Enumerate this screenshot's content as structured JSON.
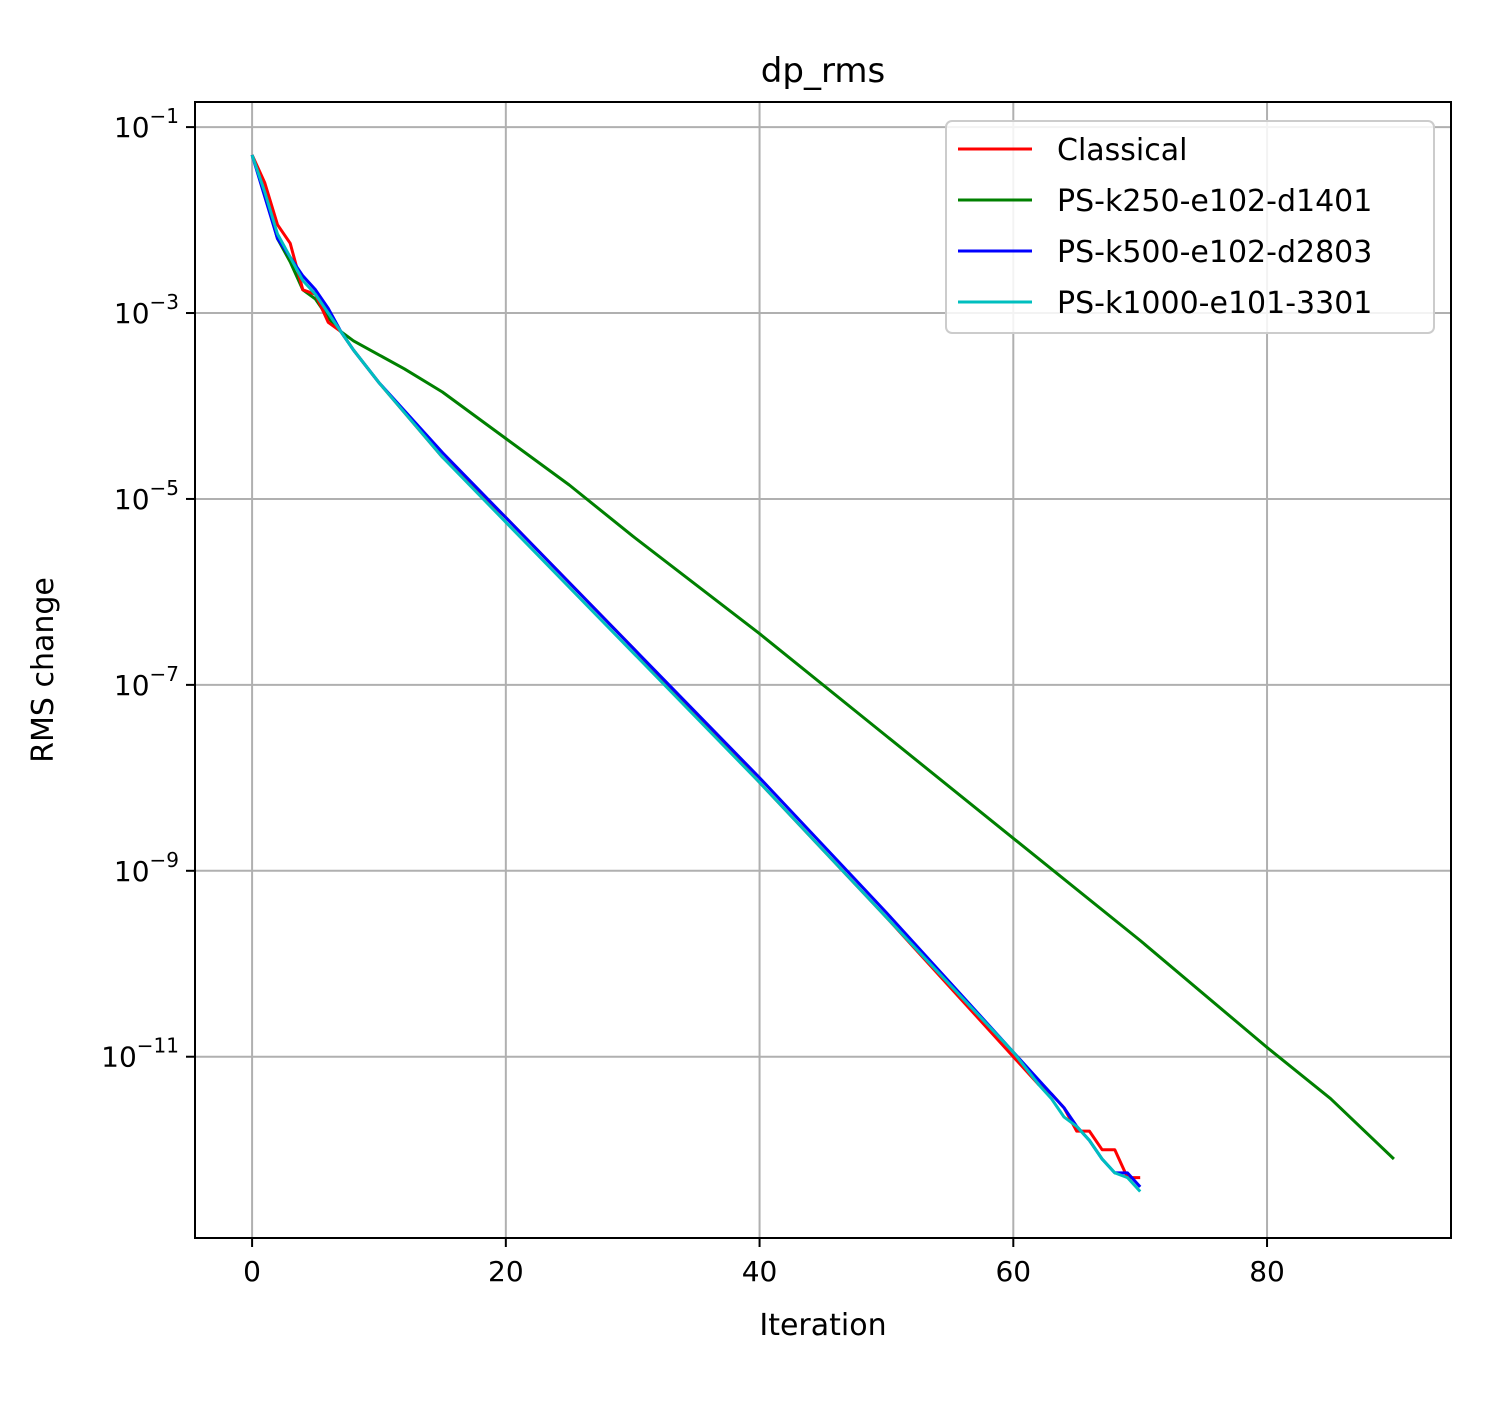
{
  "chart_data": {
    "type": "line",
    "title": "dp_rms",
    "xlabel": "Iteration",
    "ylabel": "RMS change",
    "y_scale": "log",
    "grid": true,
    "legend_position": "top-right",
    "xlim": [
      -4.5,
      94.5
    ],
    "ylim_log10": [
      -12.95,
      -0.73
    ],
    "x_ticks": [
      0,
      20,
      40,
      60,
      80
    ],
    "y_tick_exponents": [
      -1,
      -3,
      -5,
      -7,
      -9,
      -11
    ],
    "y_tick_labels": [
      "10",
      "10",
      "10",
      "10",
      "10",
      "10"
    ],
    "y_tick_superscripts": [
      "−1",
      "−3",
      "−5",
      "−7",
      "−9",
      "−11"
    ],
    "x_tick_labels": [
      "0",
      "20",
      "40",
      "60",
      "80"
    ],
    "series": [
      {
        "name": "Classical",
        "color": "#ff0000",
        "x": [
          0,
          1,
          2,
          3,
          4,
          5,
          6,
          7,
          8,
          10,
          15,
          20,
          30,
          40,
          50,
          60,
          62,
          63,
          64,
          65,
          66,
          67,
          68,
          69,
          70
        ],
        "log10_y": [
          -1.3,
          -1.6,
          -2.05,
          -2.25,
          -2.75,
          -2.8,
          -3.1,
          -3.2,
          -3.4,
          -3.75,
          -4.55,
          -5.2,
          -6.6,
          -8.05,
          -9.5,
          -11.0,
          -11.3,
          -11.4,
          -11.55,
          -11.8,
          -11.8,
          -12.0,
          -12.0,
          -12.3,
          -12.3
        ]
      },
      {
        "name": "PS-k250-e102-d1401",
        "color": "#008000",
        "x": [
          0,
          1,
          2,
          3,
          4,
          5,
          6,
          7,
          8,
          10,
          12,
          15,
          20,
          25,
          30,
          40,
          50,
          60,
          70,
          80,
          85,
          90
        ],
        "log10_y": [
          -1.3,
          -1.7,
          -2.2,
          -2.45,
          -2.75,
          -2.85,
          -3.05,
          -3.2,
          -3.3,
          -3.45,
          -3.6,
          -3.85,
          -4.35,
          -4.85,
          -5.4,
          -6.45,
          -7.55,
          -8.65,
          -9.75,
          -10.9,
          -11.45,
          -12.1
        ]
      },
      {
        "name": "PS-k500-e102-d2803",
        "color": "#0000ff",
        "x": [
          0,
          1,
          2,
          3,
          4,
          5,
          6,
          7,
          8,
          10,
          15,
          20,
          30,
          40,
          50,
          60,
          62,
          63,
          64,
          65,
          66,
          67,
          68,
          69,
          70
        ],
        "log10_y": [
          -1.3,
          -1.75,
          -2.2,
          -2.4,
          -2.6,
          -2.75,
          -2.95,
          -3.2,
          -3.4,
          -3.75,
          -4.5,
          -5.2,
          -6.6,
          -8.0,
          -9.45,
          -10.95,
          -11.25,
          -11.4,
          -11.55,
          -11.75,
          -11.9,
          -12.1,
          -12.25,
          -12.25,
          -12.4
        ]
      },
      {
        "name": "PS-k1000-e101-3301",
        "color": "#00bfbf",
        "x": [
          0,
          1,
          2,
          3,
          4,
          5,
          6,
          7,
          8,
          10,
          15,
          20,
          30,
          40,
          50,
          60,
          62,
          63,
          64,
          65,
          66,
          67,
          68,
          69,
          70
        ],
        "log10_y": [
          -1.3,
          -1.7,
          -2.15,
          -2.4,
          -2.65,
          -2.8,
          -3.0,
          -3.2,
          -3.4,
          -3.75,
          -4.55,
          -5.25,
          -6.65,
          -8.05,
          -9.5,
          -10.95,
          -11.3,
          -11.45,
          -11.65,
          -11.75,
          -11.9,
          -12.1,
          -12.25,
          -12.3,
          -12.45
        ]
      }
    ]
  }
}
